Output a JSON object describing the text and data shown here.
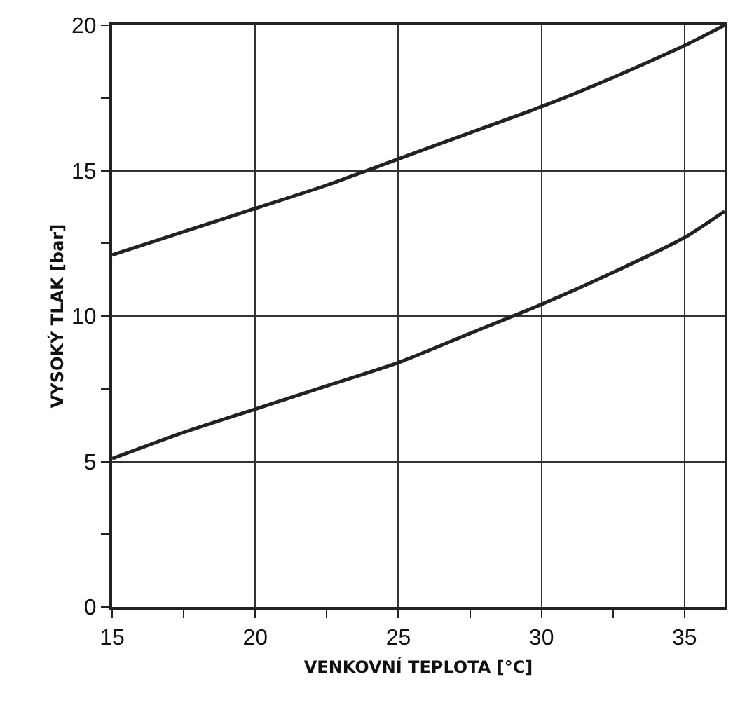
{
  "chart_data": {
    "type": "line",
    "xlabel": "VENKOVNÍ TEPLOTA [°C]",
    "ylabel": "VYSOKÝ TLAK [bar]",
    "xlim": [
      15,
      36.4
    ],
    "ylim": [
      0,
      20
    ],
    "xticks": [
      15,
      {
        "value": 17.5,
        "label": null
      },
      20,
      {
        "value": 22.5,
        "label": null
      },
      25,
      {
        "value": 27.5,
        "label": null
      },
      30,
      {
        "value": 32.5,
        "label": null
      },
      35
    ],
    "yticks": [
      0,
      {
        "value": 2.5,
        "label": null
      },
      5,
      {
        "value": 7.5,
        "label": null
      },
      10,
      {
        "value": 12.5,
        "label": null
      },
      15,
      {
        "value": 17.5,
        "label": null
      },
      20
    ],
    "grid": true,
    "series": [
      {
        "color": "#222222",
        "x": [
          15,
          17.5,
          20,
          22.5,
          25,
          27.5,
          30,
          32.5,
          35,
          36.4
        ],
        "values": [
          12.1,
          12.9,
          13.7,
          14.5,
          15.4,
          16.3,
          17.2,
          18.2,
          19.3,
          20
        ]
      },
      {
        "color": "#222222",
        "x": [
          15,
          17.5,
          20,
          22.5,
          25,
          27.5,
          30,
          32.5,
          35,
          36.4
        ],
        "values": [
          5.1,
          6,
          6.8,
          7.6,
          8.4,
          9.4,
          10.4,
          11.5,
          12.7,
          13.6
        ]
      }
    ]
  }
}
